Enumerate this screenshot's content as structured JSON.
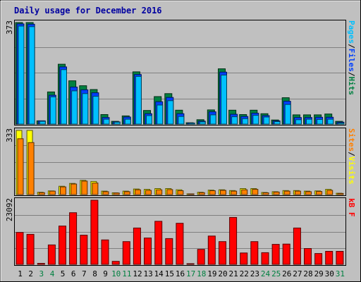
{
  "chart_data": [
    {
      "type": "bar",
      "title": "Daily usage for December 2016",
      "ymax_label": "373",
      "legend": [
        {
          "text": "Pages",
          "color": "#00c0ff"
        },
        {
          "text": "/",
          "color": "#000000"
        },
        {
          "text": "Files",
          "color": "#0040ff"
        },
        {
          "text": "/",
          "color": "#000000"
        },
        {
          "text": "Hits",
          "color": "#008040"
        }
      ],
      "categories": [
        "1",
        "2",
        "3",
        "4",
        "5",
        "6",
        "7",
        "8",
        "9",
        "10",
        "11",
        "12",
        "13",
        "14",
        "15",
        "16",
        "17",
        "18",
        "19",
        "20",
        "21",
        "22",
        "23",
        "24",
        "25",
        "26",
        "27",
        "28",
        "29",
        "30",
        "31"
      ],
      "weekend_days": [
        "3",
        "4",
        "10",
        "11",
        "17",
        "18",
        "24",
        "25",
        "31"
      ],
      "ylim": [
        0,
        373
      ],
      "series": [
        {
          "name": "Hits",
          "color": "#008040",
          "values": [
            373,
            373,
            12,
            118,
            220,
            159,
            141,
            127,
            35,
            10,
            30,
            192,
            50,
            101,
            112,
            51,
            5,
            16,
            52,
            203,
            51,
            35,
            51,
            38,
            15,
            97,
            34,
            34,
            34,
            37,
            10
          ]
        },
        {
          "name": "Files",
          "color": "#0040ff",
          "values": [
            368,
            367,
            12,
            106,
            210,
            136,
            126,
            115,
            24,
            8,
            26,
            182,
            38,
            82,
            98,
            38,
            4,
            11,
            45,
            191,
            36,
            28,
            40,
            31,
            12,
            84,
            24,
            24,
            25,
            25,
            7
          ]
        },
        {
          "name": "Pages",
          "color": "#00c0ff",
          "values": [
            360,
            358,
            10,
            100,
            200,
            122,
            112,
            102,
            18,
            7,
            18,
            175,
            31,
            70,
            86,
            28,
            3,
            8,
            34,
            180,
            27,
            20,
            32,
            26,
            9,
            72,
            16,
            18,
            17,
            18,
            4
          ]
        }
      ]
    },
    {
      "type": "bar",
      "ymax_label": "333",
      "legend": [
        {
          "text": "Sites",
          "color": "#ff8000"
        },
        {
          "text": "/",
          "color": "#000000"
        },
        {
          "text": "Visits",
          "color": "#ffff00"
        }
      ],
      "ylim": [
        0,
        333
      ],
      "series": [
        {
          "name": "Visits",
          "color": "#ffff00",
          "values": [
            333,
            333,
            12,
            19,
            43,
            58,
            74,
            68,
            18,
            9,
            18,
            29,
            27,
            31,
            31,
            25,
            3,
            12,
            23,
            25,
            21,
            31,
            31,
            11,
            15,
            21,
            21,
            18,
            19,
            27,
            7
          ]
        },
        {
          "name": "Sites",
          "color": "#ff8000",
          "values": [
            290,
            270,
            10,
            18,
            40,
            55,
            70,
            60,
            15,
            8,
            15,
            25,
            22,
            25,
            26,
            20,
            3,
            10,
            20,
            22,
            18,
            25,
            27,
            9,
            13,
            18,
            18,
            15,
            16,
            22,
            6
          ]
        }
      ]
    },
    {
      "type": "bar",
      "ymax_label": "23092",
      "legend": [
        {
          "text": "kB F",
          "color": "#ff0000"
        }
      ],
      "ylim": [
        0,
        23092
      ],
      "series": [
        {
          "name": "kB F",
          "color": "#ff0000",
          "values": [
            11500,
            10800,
            350,
            7000,
            13800,
            18600,
            10500,
            23092,
            8800,
            1100,
            8200,
            13100,
            9500,
            15500,
            9300,
            14800,
            250,
            5400,
            10200,
            8200,
            16900,
            4100,
            8200,
            4200,
            7200,
            7300,
            13100,
            5700,
            3900,
            4700,
            4700
          ]
        }
      ]
    }
  ]
}
